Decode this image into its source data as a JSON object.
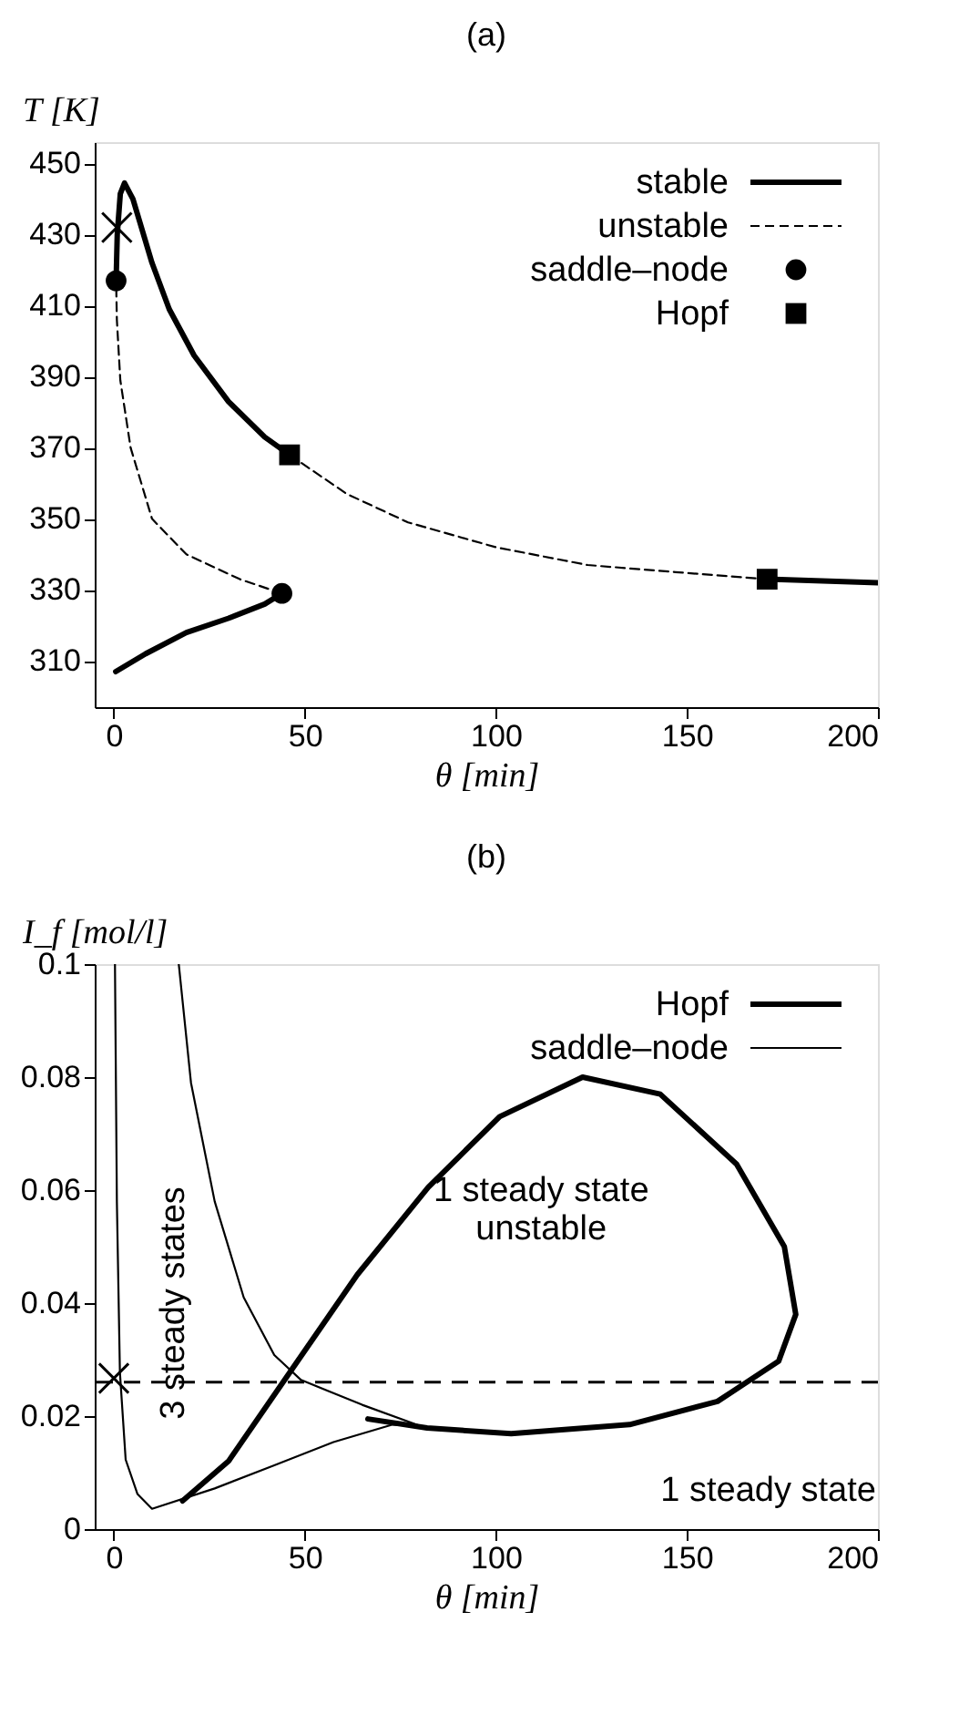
{
  "chart_data": [
    {
      "type": "line",
      "title": "(a)",
      "xlabel": "θ [min]",
      "ylabel": "T [K]",
      "xlim": [
        -5,
        200
      ],
      "ylim": [
        297,
        456
      ],
      "xticks": [
        0,
        50,
        100,
        150,
        200
      ],
      "yticks": [
        310,
        330,
        350,
        370,
        390,
        410,
        430,
        450
      ],
      "legend": "top right",
      "series": [
        {
          "name": "stable",
          "type": "line",
          "line_style": "solid",
          "color": "#000000",
          "x": [
            0.5,
            8.3,
            19,
            30,
            39.5,
            44,
            null,
            0.6,
            0.9,
            1.7,
            2.8,
            5,
            10,
            14.5,
            21,
            30,
            39.5,
            46,
            null,
            171,
            200
          ],
          "values": [
            307,
            312,
            318,
            322,
            326,
            329,
            null,
            417,
            430,
            441.5,
            444.5,
            440,
            422,
            409,
            396,
            383,
            373,
            368,
            null,
            333,
            332
          ]
        },
        {
          "name": "unstable",
          "type": "line",
          "line_style": "dashed",
          "color": "#000000",
          "x": [
            44,
            33,
            19,
            10,
            4.4,
            1.7,
            0.8,
            0.6,
            null,
            46,
            61,
            77,
            100,
            124,
            147,
            171
          ],
          "values": [
            329,
            333,
            340,
            350,
            370,
            389,
            406,
            417,
            null,
            368,
            357,
            349,
            342,
            337,
            335,
            333
          ]
        },
        {
          "name": "saddle–node",
          "type": "scatter",
          "marker": "circle",
          "color": "#000000",
          "x": [
            0.6,
            44
          ],
          "values": [
            417,
            329
          ]
        },
        {
          "name": "Hopf",
          "type": "scatter",
          "marker": "square",
          "color": "#000000",
          "x": [
            46,
            171
          ],
          "values": [
            368,
            333
          ]
        },
        {
          "type": "scatter",
          "marker": "cross",
          "color": "#000000",
          "x": [
            0.8
          ],
          "values": [
            432
          ]
        }
      ]
    },
    {
      "type": "line",
      "title": "(b)",
      "xlabel": "θ [min]",
      "ylabel": "I_f [mol/l]",
      "xlim": [
        -5,
        200
      ],
      "ylim": [
        0,
        0.1
      ],
      "xticks": [
        0,
        50,
        100,
        150,
        200
      ],
      "yticks": [
        {
          "value": 0,
          "label": "0"
        },
        0.02,
        0.04,
        0.06,
        0.08,
        {
          "value": 0.1,
          "label": "0.1"
        }
      ],
      "legend": "top right",
      "series": [
        {
          "name": "Hopf",
          "type": "line",
          "line_style": "solid",
          "color": "#000000",
          "x": [
            18,
            30,
            45,
            63.7,
            82.3,
            101,
            122.7,
            143,
            163,
            175.5,
            178.5,
            174,
            158,
            135,
            104,
            82,
            66.5
          ],
          "values": [
            0.005,
            0.012,
            0.0267,
            0.045,
            0.0605,
            0.073,
            0.08,
            0.077,
            0.0646,
            0.05,
            0.038,
            0.0297,
            0.0226,
            0.0185,
            0.0169,
            0.0179,
            0.0195
          ]
        },
        {
          "name": "saddle–node",
          "type": "line",
          "line_style": "solid",
          "color": "#000000",
          "x": [
            0.3,
            0.8,
            1.6,
            3.1,
            6.2,
            10,
            26.4,
            42,
            57.5,
            73,
            80,
            65,
            49,
            42,
            34,
            26.4,
            20.2,
            17
          ],
          "values": [
            0.1,
            0.058,
            0.0277,
            0.0123,
            0.0062,
            0.0036,
            0.0072,
            0.0113,
            0.0154,
            0.0185,
            0.0183,
            0.022,
            0.0264,
            0.0308,
            0.041,
            0.058,
            0.079,
            0.1
          ]
        },
        {
          "type": "scatter",
          "marker": "cross",
          "color": "#000000",
          "x": [
            0
          ],
          "values": [
            0.0267
          ]
        }
      ],
      "ref_lines": [
        {
          "axis": "y",
          "value": 0.026,
          "line_style": "dashed",
          "color": "#000000"
        }
      ],
      "annotations": [
        "3 steady states",
        "1 steady state\nunstable",
        "1 steady state"
      ]
    }
  ]
}
